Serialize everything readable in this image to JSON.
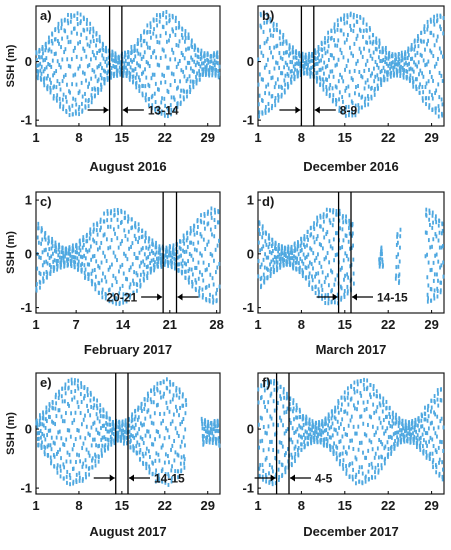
{
  "chart_data": [
    {
      "panel": "a)",
      "type": "scatter",
      "xlabel": "August 2016",
      "ylabel": "SSH (m)",
      "xticks": [
        "1",
        "8",
        "15",
        "22",
        "29"
      ],
      "yticks": [
        "-1",
        "0"
      ],
      "xlim": [
        1,
        31
      ],
      "ylim": [
        -1.1,
        0.95
      ],
      "marker_lines": [
        13,
        15
      ],
      "annotation": "13-14",
      "annotation_arrows": "outside",
      "annotation_text_side": "right",
      "gaps": [],
      "series": [
        {
          "values_description": "",
          "color": "#4fa8e0"
        }
      ]
    },
    {
      "panel": "b)",
      "type": "scatter",
      "xlabel": "December 2016",
      "ylabel": "",
      "xticks": [
        "1",
        "8",
        "15",
        "22",
        "29"
      ],
      "yticks": [
        "-1",
        "0"
      ],
      "xlim": [
        1,
        31
      ],
      "ylim": [
        -1.1,
        0.95
      ],
      "marker_lines": [
        8,
        10
      ],
      "annotation": "8-9",
      "annotation_arrows": "outside",
      "annotation_text_side": "right",
      "gaps": [],
      "series": [
        {
          "color": "#4fa8e0"
        }
      ]
    },
    {
      "panel": "c)",
      "type": "scatter",
      "xlabel": "February 2017",
      "ylabel": "SSH (m)",
      "xticks": [
        "1",
        "7",
        "14",
        "21",
        "28"
      ],
      "yticks": [
        "-1",
        "0",
        "1"
      ],
      "xlim": [
        1,
        28.5
      ],
      "ylim": [
        -1.1,
        1.15
      ],
      "marker_lines": [
        20,
        22
      ],
      "annotation": "20-21",
      "annotation_arrows": "outside",
      "annotation_text_side": "left",
      "gaps": [],
      "series": [
        {
          "color": "#4fa8e0"
        }
      ]
    },
    {
      "panel": "d)",
      "type": "scatter",
      "xlabel": "March 2017",
      "ylabel": "",
      "xticks": [
        "1",
        "8",
        "15",
        "22",
        "29"
      ],
      "yticks": [
        "-1",
        "0",
        "1"
      ],
      "xlim": [
        1,
        31
      ],
      "ylim": [
        -1.1,
        1.15
      ],
      "marker_lines": [
        14,
        16
      ],
      "annotation": "14-15",
      "annotation_arrows": "outside",
      "annotation_text_side": "right",
      "gaps": [
        [
          16.5,
          20.5
        ],
        [
          21.2,
          23.2
        ],
        [
          24.0,
          28.0
        ]
      ],
      "series": [
        {
          "color": "#4fa8e0"
        }
      ]
    },
    {
      "panel": "e)",
      "type": "scatter",
      "xlabel": "August 2017",
      "ylabel": "SSH (m)",
      "xticks": [
        "1",
        "8",
        "15",
        "22",
        "29"
      ],
      "yticks": [
        "-1",
        "0"
      ],
      "xlim": [
        1,
        31
      ],
      "ylim": [
        -1.1,
        0.95
      ],
      "marker_lines": [
        14,
        16
      ],
      "annotation": "14-15",
      "annotation_arrows": "outside",
      "annotation_text_side": "right",
      "gaps": [
        [
          25.5,
          28.0
        ]
      ],
      "series": [
        {
          "color": "#4fa8e0"
        }
      ]
    },
    {
      "panel": "f)",
      "type": "scatter",
      "xlabel": "December 2017",
      "ylabel": "",
      "xticks": [
        "1",
        "8",
        "15",
        "22",
        "29"
      ],
      "yticks": [
        "-1",
        "0"
      ],
      "xlim": [
        1,
        31
      ],
      "ylim": [
        -1.1,
        0.95
      ],
      "marker_lines": [
        4,
        6
      ],
      "annotation": "4-5",
      "annotation_arrows": "outside",
      "annotation_text_side": "right",
      "gaps": [],
      "series": [
        {
          "color": "#4fa8e0"
        }
      ]
    }
  ],
  "colors": {
    "points": "#4fa8e0",
    "axis": "#1a1a1a",
    "marker_line": "#000000"
  }
}
